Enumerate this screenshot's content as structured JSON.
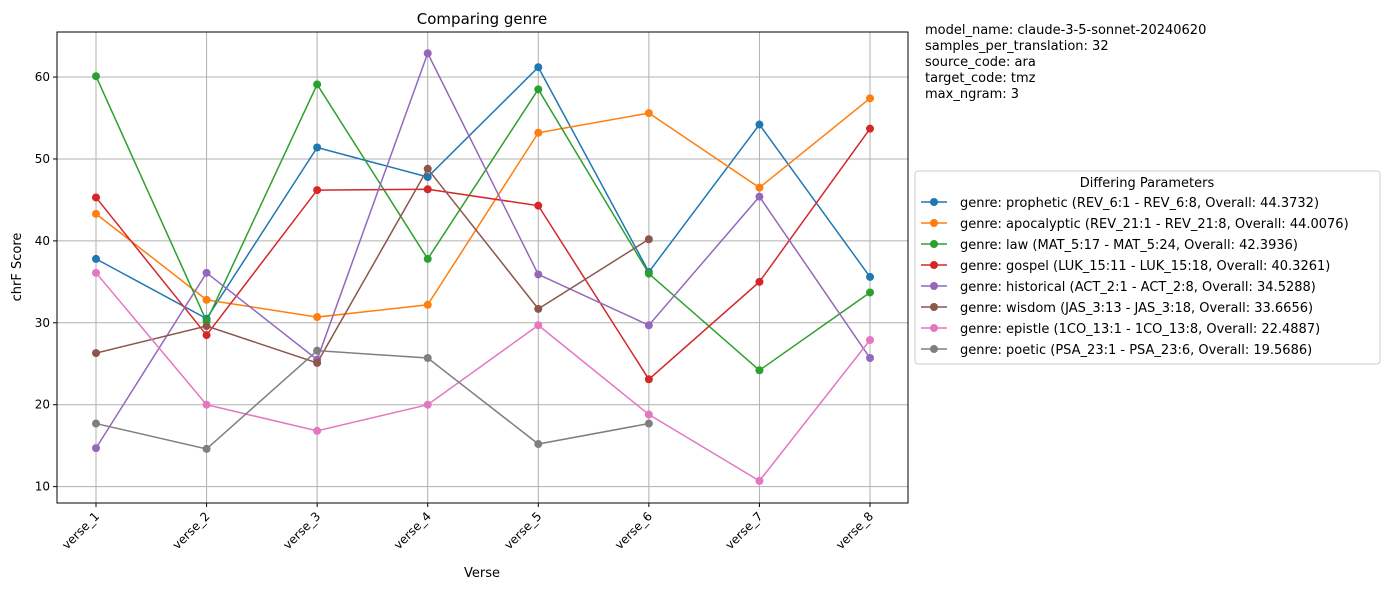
{
  "chart_data": {
    "type": "line",
    "title": "Comparing genre",
    "xlabel": "Verse",
    "ylabel": "chrF Score",
    "categories": [
      "verse_1",
      "verse_2",
      "verse_3",
      "verse_4",
      "verse_5",
      "verse_6",
      "verse_7",
      "verse_8"
    ],
    "ylim": [
      8,
      65.5
    ],
    "yticks": [
      10,
      20,
      30,
      40,
      50,
      60
    ],
    "grid": true,
    "legend": {
      "title": "Differing Parameters",
      "placement": "right"
    },
    "series": [
      {
        "name": "genre: prophetic (REV_6:1 - REV_6:8, Overall: 44.3732)",
        "color": "#1f77b4",
        "values": [
          37.8,
          30.5,
          51.4,
          47.8,
          61.2,
          36.2,
          54.2,
          35.6
        ]
      },
      {
        "name": "genre: apocalyptic (REV_21:1 - REV_21:8, Overall: 44.0076)",
        "color": "#ff7f0e",
        "values": [
          43.3,
          32.8,
          30.7,
          32.2,
          53.2,
          55.6,
          46.5,
          57.4
        ]
      },
      {
        "name": "genre: law (MAT_5:17 - MAT_5:24, Overall: 42.3936)",
        "color": "#2ca02c",
        "values": [
          60.1,
          30.2,
          59.1,
          37.8,
          58.5,
          36.0,
          24.2,
          33.7
        ]
      },
      {
        "name": "genre: gospel (LUK_15:11 - LUK_15:18, Overall: 40.3261)",
        "color": "#d62728",
        "values": [
          45.3,
          28.5,
          46.2,
          46.3,
          44.3,
          23.1,
          35.0,
          53.7
        ]
      },
      {
        "name": "genre: historical (ACT_2:1 - ACT_2:8, Overall: 34.5288)",
        "color": "#9467bd",
        "values": [
          14.7,
          36.1,
          25.5,
          62.9,
          35.9,
          29.7,
          45.4,
          25.7
        ]
      },
      {
        "name": "genre: wisdom (JAS_3:13 - JAS_3:18, Overall: 33.6656)",
        "color": "#8c564b",
        "values": [
          26.3,
          29.6,
          25.1,
          48.8,
          31.7,
          40.2,
          null,
          null
        ]
      },
      {
        "name": "genre: epistle (1CO_13:1 - 1CO_13:8, Overall: 22.4887)",
        "color": "#e377c2",
        "values": [
          36.1,
          20.0,
          16.8,
          20.0,
          29.7,
          18.8,
          10.7,
          27.9
        ]
      },
      {
        "name": "genre: poetic (PSA_23:1 - PSA_23:6, Overall: 19.5686)",
        "color": "#7f7f7f",
        "values": [
          17.7,
          14.6,
          26.6,
          25.7,
          15.2,
          17.7,
          null,
          null
        ]
      }
    ]
  },
  "parameters": [
    "model_name: claude-3-5-sonnet-20240620",
    "samples_per_translation: 32",
    "source_code: ara",
    "target_code: tmz",
    "max_ngram: 3"
  ]
}
